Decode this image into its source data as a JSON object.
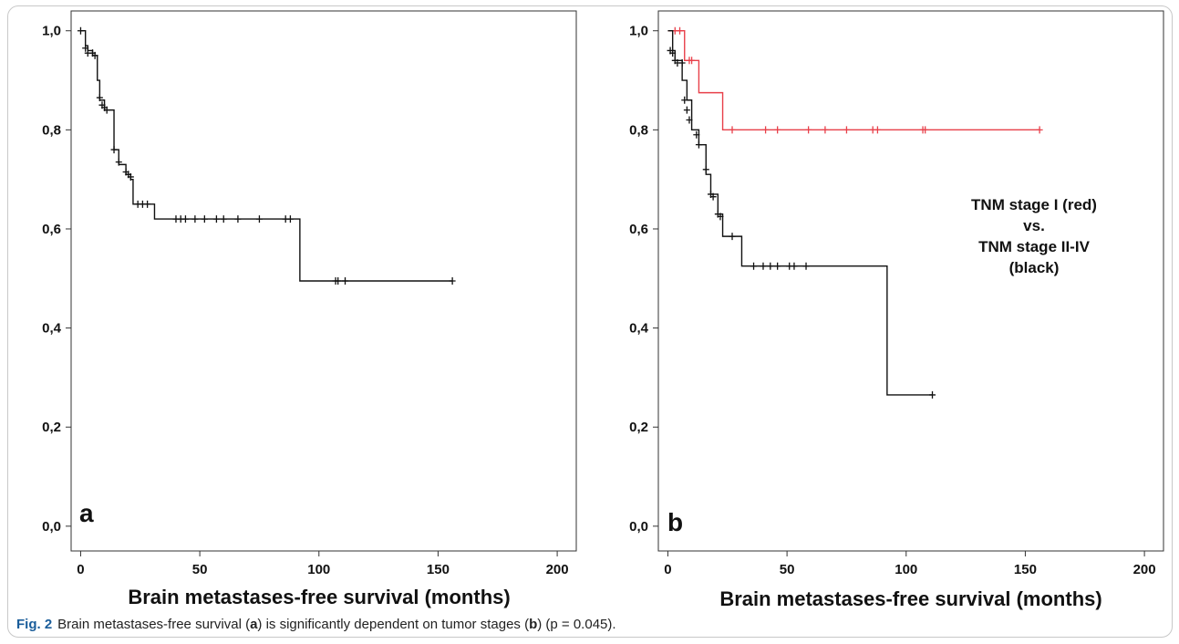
{
  "caption": {
    "fig_label": "Fig. 2",
    "text_1": "Brain metastases-free survival (",
    "letter_a": "a",
    "text_2": ") is significantly dependent on tumor stages (",
    "letter_b": "b",
    "text_3": ") (p = 0.045)."
  },
  "chart_data": [
    {
      "type": "line",
      "panel_label": "a",
      "xlabel": "Brain metastases-free survival (months)",
      "ylabel": "",
      "xlim": [
        -4,
        208
      ],
      "ylim": [
        -0.05,
        1.04
      ],
      "x_ticks": [
        0,
        50,
        100,
        150,
        200
      ],
      "x_tick_labels": [
        "0",
        "50",
        "100",
        "150",
        "200"
      ],
      "y_ticks": [
        0.0,
        0.2,
        0.4,
        0.6,
        0.8,
        1.0
      ],
      "y_tick_labels": [
        "0,0",
        "0,2",
        "0,4",
        "0,6",
        "0,8",
        "1,0"
      ],
      "series": [
        {
          "color": "#111111",
          "steps": [
            [
              0,
              1.0
            ],
            [
              2,
              0.97
            ],
            [
              3,
              0.96
            ],
            [
              5,
              0.95
            ],
            [
              7,
              0.9
            ],
            [
              8,
              0.86
            ],
            [
              10,
              0.84
            ],
            [
              14,
              0.76
            ],
            [
              16,
              0.73
            ],
            [
              19,
              0.71
            ],
            [
              21,
              0.7
            ],
            [
              22,
              0.65
            ],
            [
              31,
              0.62
            ],
            [
              92,
              0.495
            ],
            [
              156,
              0.495
            ]
          ],
          "censored": [
            [
              0,
              1.0
            ],
            [
              2,
              0.965
            ],
            [
              3,
              0.955
            ],
            [
              5,
              0.955
            ],
            [
              6,
              0.95
            ],
            [
              8,
              0.865
            ],
            [
              9,
              0.85
            ],
            [
              10,
              0.845
            ],
            [
              11,
              0.84
            ],
            [
              14,
              0.76
            ],
            [
              16,
              0.735
            ],
            [
              19,
              0.715
            ],
            [
              20,
              0.71
            ],
            [
              21,
              0.705
            ],
            [
              24,
              0.65
            ],
            [
              26,
              0.65
            ],
            [
              28,
              0.65
            ],
            [
              40,
              0.62
            ],
            [
              42,
              0.62
            ],
            [
              44,
              0.62
            ],
            [
              48,
              0.62
            ],
            [
              52,
              0.62
            ],
            [
              57,
              0.62
            ],
            [
              60,
              0.62
            ],
            [
              66,
              0.62
            ],
            [
              75,
              0.62
            ],
            [
              86,
              0.62
            ],
            [
              88,
              0.62
            ],
            [
              107,
              0.495
            ],
            [
              108,
              0.495
            ],
            [
              111,
              0.495
            ],
            [
              156,
              0.495
            ]
          ]
        }
      ]
    },
    {
      "type": "line",
      "panel_label": "b",
      "xlabel": "Brain metastases-free survival (months)",
      "ylabel": "",
      "xlim": [
        -4,
        208
      ],
      "ylim": [
        -0.05,
        1.04
      ],
      "x_ticks": [
        0,
        50,
        100,
        150,
        200
      ],
      "x_tick_labels": [
        "0",
        "50",
        "100",
        "150",
        "200"
      ],
      "y_ticks": [
        0.0,
        0.2,
        0.4,
        0.6,
        0.8,
        1.0
      ],
      "y_tick_labels": [
        "0,0",
        "0,2",
        "0,4",
        "0,6",
        "0,8",
        "1,0"
      ],
      "annotation": [
        "TNM stage I (red)",
        "vs.",
        "TNM stage II-IV",
        "(black)"
      ],
      "series": [
        {
          "name": "TNM stage I (red)",
          "color": "#e8404a",
          "steps": [
            [
              0,
              1.0
            ],
            [
              7,
              0.94
            ],
            [
              13,
              0.875
            ],
            [
              23,
              0.8
            ],
            [
              156,
              0.8
            ]
          ],
          "censored": [
            [
              3,
              1.0
            ],
            [
              5,
              1.0
            ],
            [
              9,
              0.94
            ],
            [
              10,
              0.94
            ],
            [
              27,
              0.8
            ],
            [
              41,
              0.8
            ],
            [
              46,
              0.8
            ],
            [
              59,
              0.8
            ],
            [
              66,
              0.8
            ],
            [
              75,
              0.8
            ],
            [
              86,
              0.8
            ],
            [
              88,
              0.8
            ],
            [
              107,
              0.8
            ],
            [
              108,
              0.8
            ],
            [
              156,
              0.8
            ]
          ]
        },
        {
          "name": "TNM stage II-IV (black)",
          "color": "#111111",
          "steps": [
            [
              0,
              1.0
            ],
            [
              2,
              0.96
            ],
            [
              3,
              0.94
            ],
            [
              6,
              0.9
            ],
            [
              8,
              0.86
            ],
            [
              10,
              0.8
            ],
            [
              13,
              0.77
            ],
            [
              16,
              0.71
            ],
            [
              18,
              0.67
            ],
            [
              21,
              0.63
            ],
            [
              23,
              0.585
            ],
            [
              31,
              0.525
            ],
            [
              92,
              0.265
            ],
            [
              111,
              0.265
            ]
          ],
          "censored": [
            [
              1,
              0.96
            ],
            [
              2,
              0.955
            ],
            [
              3,
              0.94
            ],
            [
              4,
              0.935
            ],
            [
              6,
              0.935
            ],
            [
              7,
              0.86
            ],
            [
              8,
              0.84
            ],
            [
              9,
              0.82
            ],
            [
              12,
              0.79
            ],
            [
              13,
              0.77
            ],
            [
              16,
              0.72
            ],
            [
              18,
              0.67
            ],
            [
              19,
              0.665
            ],
            [
              21,
              0.63
            ],
            [
              22,
              0.625
            ],
            [
              27,
              0.585
            ],
            [
              36,
              0.525
            ],
            [
              40,
              0.525
            ],
            [
              43,
              0.525
            ],
            [
              46,
              0.525
            ],
            [
              51,
              0.525
            ],
            [
              53,
              0.525
            ],
            [
              58,
              0.525
            ],
            [
              111,
              0.265
            ]
          ]
        }
      ]
    }
  ]
}
